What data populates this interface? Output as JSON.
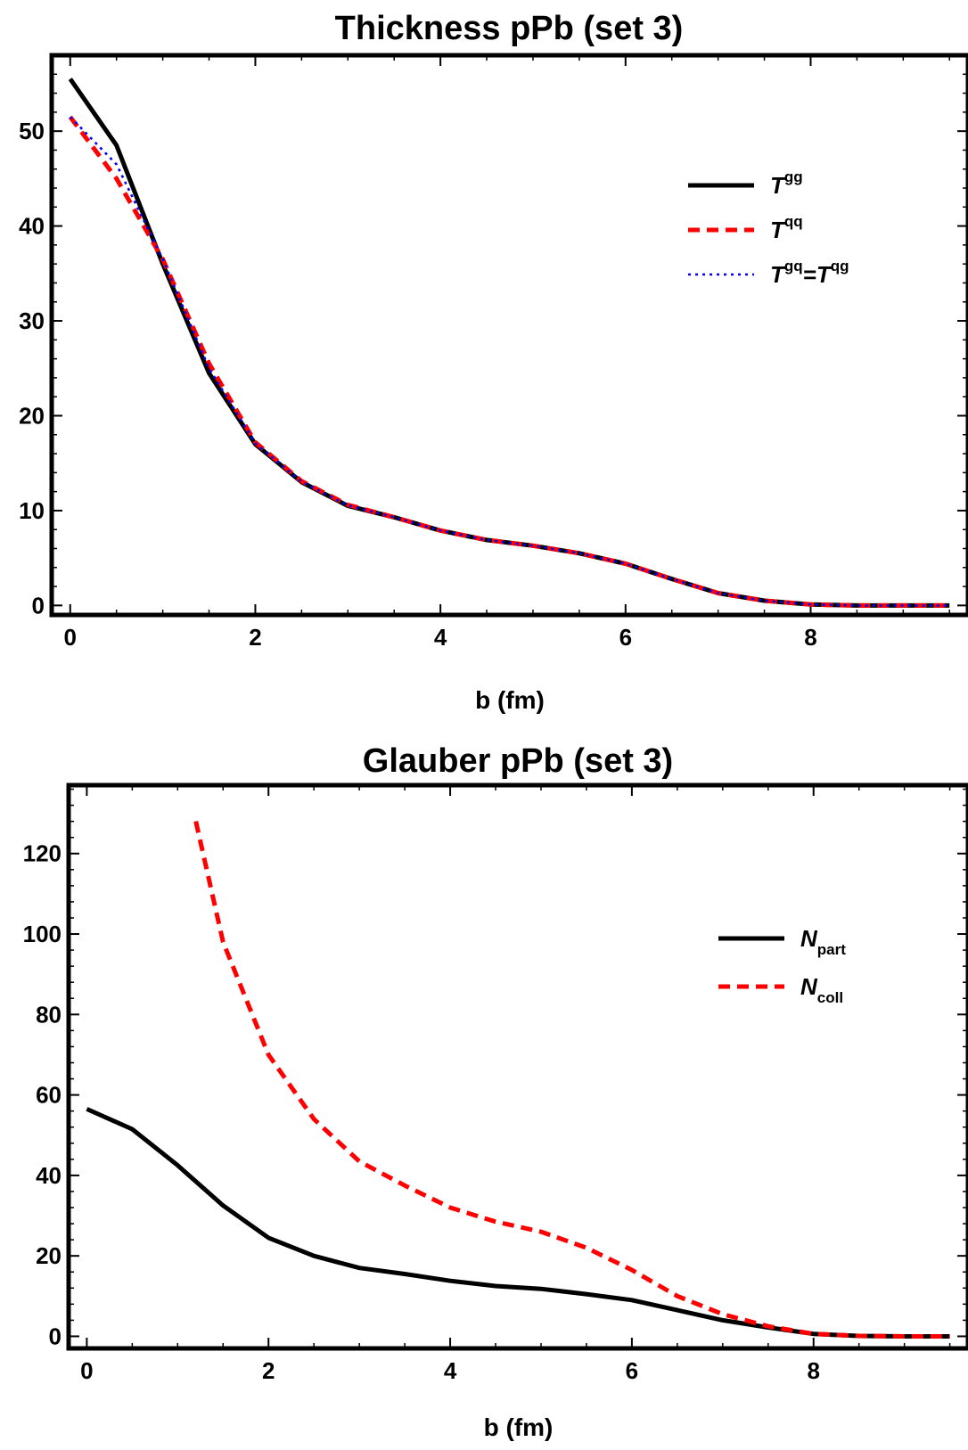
{
  "chart_data": [
    {
      "type": "line",
      "title": "Thickness pPb (set 3)",
      "xlabel": "b (fm)",
      "ylabel": "",
      "xlim": [
        -0.2,
        9.7
      ],
      "ylim": [
        -1,
        58
      ],
      "xticks": [
        0,
        2,
        4,
        6,
        8
      ],
      "yticks": [
        0,
        10,
        20,
        30,
        40,
        50
      ],
      "legend_position": "top-right",
      "series": [
        {
          "base": "T",
          "sup": "gg",
          "color": "#000000",
          "style": "solid",
          "x": [
            0,
            0.5,
            1,
            1.5,
            2,
            2.5,
            3,
            3.5,
            4,
            4.5,
            5,
            5.5,
            6,
            6.5,
            7,
            7.5,
            8,
            8.5,
            9,
            9.5
          ],
          "y": [
            55.5,
            48.5,
            36,
            24.5,
            17,
            13,
            10.5,
            9.3,
            7.9,
            6.9,
            6.3,
            5.5,
            4.4,
            2.8,
            1.3,
            0.5,
            0.1,
            0,
            0,
            0
          ]
        },
        {
          "base": "T",
          "sup": "qq",
          "color": "#ff0000",
          "style": "dashed",
          "x": [
            0,
            0.5,
            1,
            1.5,
            2,
            2.5,
            3,
            3.5,
            4,
            4.5,
            5,
            5.5,
            6,
            6.5,
            7,
            7.5,
            8,
            8.5,
            9,
            9.5
          ],
          "y": [
            51.5,
            45,
            36.5,
            25.5,
            17.2,
            13.1,
            10.6,
            9.3,
            7.9,
            6.9,
            6.3,
            5.5,
            4.4,
            2.8,
            1.3,
            0.5,
            0.1,
            0,
            0,
            0
          ]
        },
        {
          "base": "T",
          "sup": "gq",
          "eq": "=",
          "base2": "T",
          "sup2": "qg",
          "color": "#0000ff",
          "style": "dotted",
          "x": [
            0,
            0.5,
            1,
            1.5,
            2,
            2.5,
            3,
            3.5,
            4,
            4.5,
            5,
            5.5,
            6,
            6.5,
            7,
            7.5,
            8,
            8.5,
            9,
            9.5
          ],
          "y": [
            51.5,
            46.5,
            36.5,
            25,
            17.1,
            13.05,
            10.55,
            9.3,
            7.9,
            6.9,
            6.3,
            5.5,
            4.4,
            2.8,
            1.3,
            0.5,
            0.1,
            0,
            0,
            0
          ]
        }
      ]
    },
    {
      "type": "line",
      "title": "Glauber pPb (set 3)",
      "xlabel": "b (fm)",
      "ylabel": "",
      "xlim": [
        -0.2,
        9.7
      ],
      "ylim": [
        -3,
        137
      ],
      "xticks": [
        0,
        2,
        4,
        6,
        8
      ],
      "yticks": [
        0,
        20,
        40,
        60,
        80,
        100,
        120
      ],
      "legend_position": "top-right",
      "series": [
        {
          "base": "N",
          "sub": "part",
          "color": "#000000",
          "style": "solid",
          "x": [
            0,
            0.5,
            1,
            1.5,
            2,
            2.5,
            3,
            3.5,
            4,
            4.5,
            5,
            5.5,
            6,
            6.5,
            7,
            7.5,
            8,
            8.5,
            9,
            9.5
          ],
          "y": [
            56.5,
            51.5,
            42.5,
            32.5,
            24.5,
            20,
            17,
            15.5,
            13.8,
            12.5,
            11.8,
            10.5,
            9,
            6.5,
            4,
            2.2,
            0.6,
            0.1,
            0,
            0
          ]
        },
        {
          "base": "N",
          "sub": "coll",
          "color": "#ff0000",
          "style": "dashed",
          "x": [
            1.2,
            1.5,
            2,
            2.5,
            3,
            3.5,
            4,
            4.5,
            5,
            5.5,
            6,
            6.5,
            7,
            7.5,
            8,
            8.5,
            9,
            9.5
          ],
          "y": [
            128,
            98,
            70,
            54,
            43.5,
            37.5,
            32,
            28.5,
            26,
            22,
            16.5,
            10,
            5.5,
            2.5,
            0.6,
            0.1,
            0,
            0
          ]
        }
      ]
    }
  ]
}
